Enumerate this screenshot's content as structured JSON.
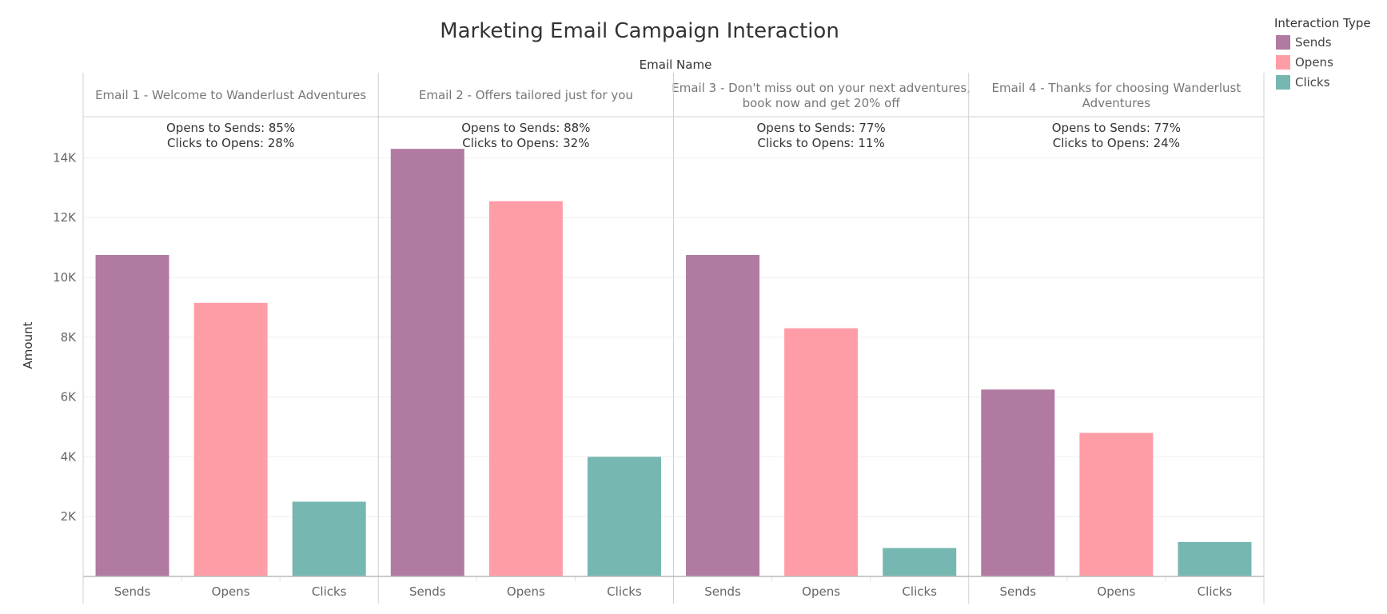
{
  "chart_data": {
    "type": "bar",
    "title": "Marketing Email Campaign Interaction",
    "facet_label": "Email Name",
    "ylabel": "Amount",
    "ylim": [
      0,
      15400
    ],
    "yticks": [
      2000,
      4000,
      6000,
      8000,
      10000,
      12000,
      14000
    ],
    "ytick_labels": [
      "2K",
      "4K",
      "6K",
      "8K",
      "10K",
      "12K",
      "14K"
    ],
    "categories": [
      "Sends",
      "Opens",
      "Clicks"
    ],
    "colors": {
      "Sends": "#b07aa1",
      "Opens": "#ff9da7",
      "Clicks": "#76b7b2"
    },
    "grid": true,
    "legend": {
      "title": "Interaction Type",
      "placement": "top-right",
      "items": [
        "Sends",
        "Opens",
        "Clicks"
      ]
    },
    "facets": [
      {
        "name_lines": [
          "Email 1 - Welcome to Wanderlust Adventures"
        ],
        "values": [
          10750,
          9150,
          2500
        ],
        "annotation": [
          "Opens to Sends: 85%",
          "Clicks to Opens: 28%"
        ]
      },
      {
        "name_lines": [
          "Email 2 - Offers tailored just for you"
        ],
        "values": [
          14300,
          12550,
          4000
        ],
        "annotation": [
          "Opens to Sends: 88%",
          "Clicks to Opens: 32%"
        ]
      },
      {
        "name_lines": [
          "Email 3 - Don't miss out on your next adventures,",
          "book now and get 20% off"
        ],
        "values": [
          10750,
          8300,
          950
        ],
        "annotation": [
          "Opens to Sends: 77%",
          "Clicks to Opens: 11%"
        ]
      },
      {
        "name_lines": [
          "Email 4 - Thanks for choosing Wanderlust",
          "Adventures"
        ],
        "values": [
          6250,
          4800,
          1150
        ],
        "annotation": [
          "Opens to Sends: 77%",
          "Clicks to Opens: 24%"
        ]
      }
    ]
  }
}
